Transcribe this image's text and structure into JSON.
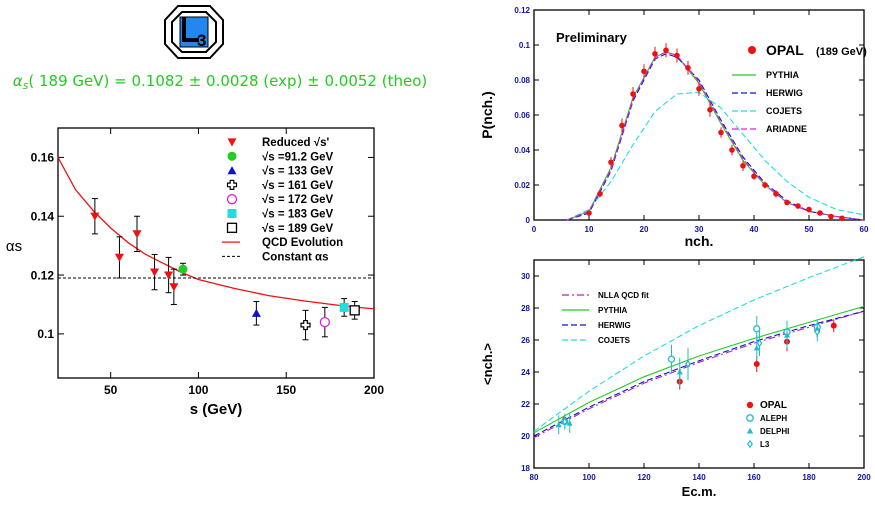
{
  "logo": {
    "text": "L3",
    "subscript": "3"
  },
  "formula": {
    "symbol": "α",
    "subscript": "s",
    "text": "( 189 GeV) = 0.1082 ± 0.0028 (exp) ± 0.0052 (theo)",
    "color": "#22cc22"
  },
  "chart_data": [
    {
      "id": "alpha-s",
      "type": "scatter",
      "xlabel": "s  (GeV)",
      "ylabel": "αs",
      "xlim": [
        20,
        200
      ],
      "ylim": [
        0.085,
        0.17
      ],
      "xticks": [
        50,
        100,
        150,
        200
      ],
      "yticks": [
        0.1,
        0.12,
        0.14,
        0.16
      ],
      "ytick_labels": [
        "0.1",
        "0.12",
        "0.14",
        "0.16"
      ],
      "legend": [
        {
          "label": "Reduced √s'",
          "marker": "triangle-down",
          "color": "#ee1111"
        },
        {
          "label": "√s =91.2 GeV",
          "marker": "circle",
          "color": "#22cc22"
        },
        {
          "label": "√s = 133 GeV",
          "marker": "triangle-up",
          "color": "#1111cc"
        },
        {
          "label": "√s = 161 GeV",
          "marker": "cross-open",
          "color": "#000000"
        },
        {
          "label": "√s = 172 GeV",
          "marker": "circle-open",
          "color": "#dd22dd"
        },
        {
          "label": "√s = 183 GeV",
          "marker": "square",
          "color": "#22dddd"
        },
        {
          "label": "√s = 189 GeV",
          "marker": "square-open",
          "color": "#000000"
        },
        {
          "label": "QCD Evolution",
          "marker": "line",
          "color": "#ee1111"
        },
        {
          "label": "Constant αs",
          "marker": "dashed",
          "color": "#000000"
        }
      ],
      "series": [
        {
          "name": "Reduced √s'",
          "marker": "triangle-down",
          "color": "#ee1111",
          "x": [
            41,
            55,
            65,
            75,
            83,
            86
          ],
          "y": [
            0.14,
            0.126,
            0.134,
            0.121,
            0.12,
            0.116
          ],
          "err": [
            0.006,
            0.007,
            0.006,
            0.006,
            0.006,
            0.006
          ]
        },
        {
          "name": "√s =91.2 GeV",
          "marker": "circle",
          "color": "#22cc22",
          "x": [
            91.2
          ],
          "y": [
            0.122
          ],
          "err": [
            0.002
          ]
        },
        {
          "name": "√s = 133 GeV",
          "marker": "triangle-up",
          "color": "#1111cc",
          "x": [
            133
          ],
          "y": [
            0.107
          ],
          "err": [
            0.004
          ]
        },
        {
          "name": "√s = 161 GeV",
          "marker": "cross-open",
          "color": "#000000",
          "x": [
            161
          ],
          "y": [
            0.103
          ],
          "err": [
            0.005
          ]
        },
        {
          "name": "√s = 172 GeV",
          "marker": "circle-open",
          "color": "#dd22dd",
          "x": [
            172
          ],
          "y": [
            0.104
          ],
          "err": [
            0.005
          ]
        },
        {
          "name": "√s = 183 GeV",
          "marker": "square",
          "color": "#22dddd",
          "x": [
            183
          ],
          "y": [
            0.109
          ],
          "err": [
            0.003
          ]
        },
        {
          "name": "√s = 189 GeV",
          "marker": "square-open",
          "color": "#000000",
          "x": [
            189
          ],
          "y": [
            0.108
          ],
          "err": [
            0.003
          ]
        }
      ],
      "curves": [
        {
          "name": "QCD Evolution",
          "style": "solid",
          "color": "#ee1111",
          "x": [
            20,
            30,
            40,
            50,
            60,
            70,
            80,
            90,
            100,
            120,
            140,
            160,
            180,
            200
          ],
          "y": [
            0.16,
            0.149,
            0.142,
            0.136,
            0.131,
            0.127,
            0.124,
            0.121,
            0.1185,
            0.1155,
            0.113,
            0.1112,
            0.1097,
            0.1085
          ]
        },
        {
          "name": "Constant αs",
          "style": "dashed",
          "color": "#000000",
          "x": [
            20,
            200
          ],
          "y": [
            0.119,
            0.119
          ]
        }
      ]
    },
    {
      "id": "multiplicity-distribution",
      "type": "line",
      "title": "Preliminary",
      "xlabel": "nch.",
      "ylabel": "P(nch.)",
      "xlim": [
        0,
        60
      ],
      "ylim": [
        0,
        0.12
      ],
      "xticks": [
        0,
        10,
        20,
        30,
        40,
        50,
        60
      ],
      "yticks": [
        0,
        0.02,
        0.04,
        0.06,
        0.08,
        0.1,
        0.12
      ],
      "ytick_labels": [
        "0",
        "0.02",
        "0.04",
        "0.06",
        "0.08",
        "0.1",
        "0.12"
      ],
      "data_label": "OPAL",
      "data_label_extra": "(189 GeV)",
      "data_color": "#ee1111",
      "data": {
        "x": [
          10,
          12,
          14,
          16,
          18,
          20,
          22,
          24,
          26,
          28,
          30,
          32,
          34,
          36,
          38,
          40,
          42,
          44,
          46,
          48,
          50,
          52,
          54,
          56
        ],
        "y": [
          0.004,
          0.015,
          0.033,
          0.054,
          0.072,
          0.085,
          0.095,
          0.097,
          0.094,
          0.087,
          0.075,
          0.063,
          0.05,
          0.04,
          0.031,
          0.025,
          0.02,
          0.015,
          0.01,
          0.008,
          0.006,
          0.004,
          0.002,
          0.001
        ],
        "err": [
          0.001,
          0.002,
          0.003,
          0.004,
          0.004,
          0.004,
          0.004,
          0.004,
          0.004,
          0.004,
          0.004,
          0.004,
          0.003,
          0.003,
          0.003,
          0.002,
          0.002,
          0.002,
          0.001,
          0.001,
          0.001,
          0.001,
          0.001,
          0.001
        ]
      },
      "curves": [
        {
          "name": "PYTHIA",
          "color": "#22cc22",
          "style": "solid",
          "x": [
            6,
            10,
            14,
            18,
            22,
            24,
            26,
            30,
            34,
            38,
            42,
            46,
            50,
            55,
            60
          ],
          "y": [
            0.0,
            0.005,
            0.03,
            0.07,
            0.093,
            0.096,
            0.094,
            0.078,
            0.055,
            0.034,
            0.02,
            0.01,
            0.005,
            0.002,
            0.0
          ]
        },
        {
          "name": "HERWIG",
          "color": "#1111cc",
          "style": "dashed",
          "x": [
            6,
            10,
            14,
            18,
            22,
            24,
            26,
            30,
            34,
            38,
            42,
            46,
            50,
            55,
            60
          ],
          "y": [
            0.0,
            0.004,
            0.028,
            0.068,
            0.092,
            0.095,
            0.093,
            0.08,
            0.057,
            0.036,
            0.021,
            0.011,
            0.005,
            0.002,
            0.0
          ]
        },
        {
          "name": "COJETS",
          "color": "#22dddd",
          "style": "dashed",
          "x": [
            6,
            10,
            14,
            18,
            22,
            26,
            30,
            34,
            38,
            42,
            46,
            50,
            55,
            60
          ],
          "y": [
            0.0,
            0.006,
            0.022,
            0.043,
            0.062,
            0.072,
            0.073,
            0.064,
            0.049,
            0.034,
            0.022,
            0.013,
            0.006,
            0.003
          ]
        },
        {
          "name": "ARIADNE",
          "color": "#dd22dd",
          "style": "dashed",
          "x": [
            6,
            10,
            14,
            18,
            22,
            24,
            26,
            30,
            34,
            38,
            42,
            46,
            50,
            55,
            60
          ],
          "y": [
            0.0,
            0.005,
            0.029,
            0.069,
            0.093,
            0.096,
            0.094,
            0.079,
            0.056,
            0.035,
            0.02,
            0.01,
            0.005,
            0.002,
            0.0
          ]
        }
      ]
    },
    {
      "id": "mean-multiplicity",
      "type": "scatter",
      "xlabel": "Ec.m.",
      "ylabel": "<nch.>",
      "xlim": [
        80,
        200
      ],
      "ylim": [
        18,
        31
      ],
      "xticks": [
        80,
        100,
        120,
        140,
        160,
        180,
        200
      ],
      "yticks": [
        18,
        20,
        22,
        24,
        26,
        28,
        30
      ],
      "ytick_labels": [
        "18",
        "20",
        "22",
        "24",
        "26",
        "28",
        "30"
      ],
      "curves": [
        {
          "name": "NLLA QCD fit",
          "color": "#bb22bb",
          "style": "dashdot",
          "x": [
            80,
            100,
            120,
            140,
            160,
            180,
            200
          ],
          "y": [
            19.9,
            21.7,
            23.3,
            24.6,
            25.8,
            26.8,
            27.8
          ]
        },
        {
          "name": "PYTHIA",
          "color": "#22cc22",
          "style": "solid",
          "x": [
            80,
            100,
            120,
            140,
            160,
            180,
            200
          ],
          "y": [
            20.2,
            22.1,
            23.7,
            25.0,
            26.1,
            27.1,
            28.1
          ]
        },
        {
          "name": "HERWIG",
          "color": "#1111cc",
          "style": "dashed",
          "x": [
            80,
            100,
            120,
            140,
            160,
            180,
            200
          ],
          "y": [
            20.0,
            21.8,
            23.4,
            24.7,
            25.9,
            26.9,
            27.8
          ]
        },
        {
          "name": "COJETS",
          "color": "#22dddd",
          "style": "dashed",
          "x": [
            80,
            100,
            120,
            140,
            160,
            180,
            200
          ],
          "y": [
            20.3,
            22.8,
            25.0,
            26.9,
            28.5,
            29.9,
            31.2
          ]
        }
      ],
      "points": [
        {
          "name": "OPAL",
          "marker": "circle",
          "color": "#ee1111",
          "x": [
            91.2,
            133,
            161,
            172,
            183,
            189
          ],
          "y": [
            21.0,
            23.4,
            24.5,
            25.9,
            26.6,
            26.9
          ],
          "err": [
            0.3,
            0.5,
            0.5,
            0.6,
            0.4,
            0.4
          ]
        },
        {
          "name": "ALEPH",
          "marker": "circle-open",
          "color": "#22bbcc",
          "x": [
            91.2,
            130,
            161,
            172,
            183
          ],
          "y": [
            20.9,
            24.8,
            26.7,
            26.5,
            26.8
          ],
          "err": [
            0.4,
            0.9,
            0.8,
            0.7,
            0.5
          ]
        },
        {
          "name": "DELPHI",
          "marker": "triangle-up",
          "color": "#22bbcc",
          "x": [
            89,
            91.2,
            93,
            133,
            161,
            172,
            183
          ],
          "y": [
            20.7,
            21.0,
            20.8,
            24.0,
            25.5,
            26.3,
            26.7
          ],
          "err": [
            0.6,
            0.3,
            0.6,
            0.9,
            0.8,
            0.8,
            0.4
          ]
        },
        {
          "name": "L3",
          "marker": "diamond-open",
          "color": "#22bbcc",
          "x": [
            91.2,
            136,
            162,
            183
          ],
          "y": [
            20.9,
            24.5,
            25.8,
            26.5
          ],
          "err": [
            0.5,
            1.0,
            0.8,
            0.6
          ]
        }
      ]
    }
  ]
}
